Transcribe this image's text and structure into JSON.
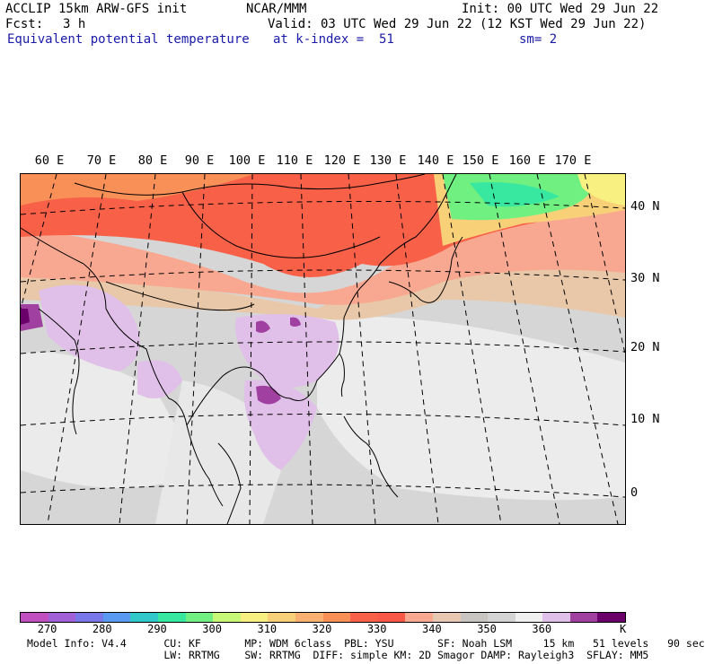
{
  "header": {
    "title": "ACCLIP 15km ARW-GFS init",
    "center": "NCAR/MMM",
    "init": "Init: 00 UTC Wed 29 Jun 22",
    "fcst_label": "Fcst:",
    "fcst_value": "3 h",
    "valid": "Valid: 03 UTC Wed 29 Jun 22 (12 KST Wed 29 Jun 22)",
    "field": "Equivalent potential temperature",
    "level": "at k-index =  51",
    "smoothing": "sm= 2"
  },
  "map": {
    "lon_labels": [
      "60 E",
      "70 E",
      "80 E",
      "90 E",
      "100 E",
      "110 E",
      "120 E",
      "130 E",
      "140 E",
      "150 E",
      "160 E",
      "170 E"
    ],
    "lat_labels": [
      "40 N",
      "30 N",
      "20 N",
      "10 N",
      "0"
    ]
  },
  "colorbar": {
    "colors": [
      "#c050c0",
      "#a060d8",
      "#7a78e8",
      "#5a9af0",
      "#30c8c8",
      "#38e8a0",
      "#70f080",
      "#c8f878",
      "#f8f080",
      "#f8d078",
      "#f8b070",
      "#f89058",
      "#f86048",
      "#f85848",
      "#f8a890",
      "#e8c8b0",
      "#c8c4c0",
      "#d4d4d4",
      "#f0f0f0",
      "#e0c0e8",
      "#a040a0",
      "#6a006a"
    ],
    "labels": [
      "270",
      "280",
      "290",
      "300",
      "310",
      "320",
      "330",
      "340",
      "350",
      "360"
    ],
    "unit": "K"
  },
  "footer": {
    "line1": "Model Info: V4.4      CU: KF       MP: WDM 6class  PBL: YSU       SF: Noah LSM     15 km   51 levels   90 sec",
    "line2": "                      LW: RRTMG    SW: RRTMG  DIFF: simple KM: 2D Smagor DAMP: Rayleigh3  SFLAY: MM5"
  }
}
